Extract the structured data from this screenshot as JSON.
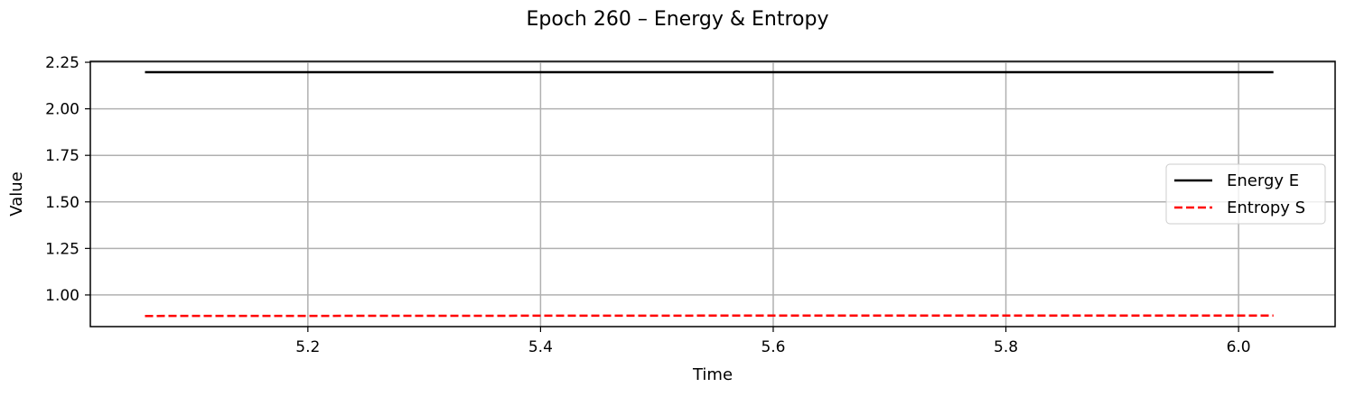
{
  "chart_data": {
    "type": "line",
    "title": "Epoch 260 – Energy & Entropy",
    "xlabel": "Time",
    "ylabel": "Value",
    "xlim": [
      5.013,
      6.083
    ],
    "ylim": [
      0.83,
      2.255
    ],
    "xticks": [
      5.2,
      5.4,
      5.6,
      5.8,
      6.0
    ],
    "xtick_labels": [
      "5.2",
      "5.4",
      "5.6",
      "5.8",
      "6.0"
    ],
    "yticks": [
      1.0,
      1.25,
      1.5,
      1.75,
      2.0,
      2.25
    ],
    "ytick_labels": [
      "1.00",
      "1.25",
      "1.50",
      "1.75",
      "2.00",
      "2.25"
    ],
    "grid": true,
    "legend_position": "center-right",
    "series": [
      {
        "name": "Energy E",
        "color": "#000000",
        "style": "solid",
        "x": [
          5.06,
          6.03
        ],
        "y": [
          2.197,
          2.197
        ]
      },
      {
        "name": "Entropy S",
        "color": "#ff0000",
        "style": "dashed",
        "x": [
          5.06,
          5.3,
          5.55,
          5.8,
          6.03
        ],
        "y": [
          0.887,
          0.888,
          0.889,
          0.889,
          0.889
        ]
      }
    ]
  }
}
